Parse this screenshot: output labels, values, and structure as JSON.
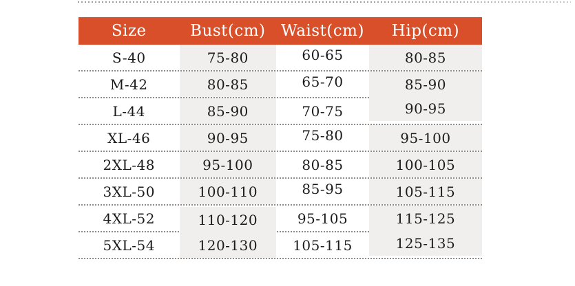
{
  "page": {
    "background_color": "#ffffff"
  },
  "table": {
    "title": "size-chart",
    "header": {
      "bg_color": "#d84f2a",
      "text_color": "#ffffff"
    },
    "columns": [
      {
        "label": "Size"
      },
      {
        "label": "Bust(cm)"
      },
      {
        "label": "Waist(cm)"
      },
      {
        "label": "Hip(cm)"
      }
    ],
    "rows": [
      {
        "size": "S-40",
        "bust": "75-80",
        "waist": "60-65",
        "hip": "80-85"
      },
      {
        "size": "M-42",
        "bust": "80-85",
        "waist": "65-70",
        "hip": "85-90"
      },
      {
        "size": "L-44",
        "bust": "85-90",
        "waist": "70-75",
        "hip": "90-95"
      },
      {
        "size": "XL-46",
        "bust": "90-95",
        "waist": "75-80",
        "hip": "95-100"
      },
      {
        "size": "2XL-48",
        "bust": "95-100",
        "waist": "80-85",
        "hip": "100-105"
      },
      {
        "size": "3XL-50",
        "bust": "100-110",
        "waist": "85-95",
        "hip": "105-115"
      },
      {
        "size": "4XL-52",
        "bust": "110-120",
        "waist": "95-105",
        "hip": "115-125"
      },
      {
        "size": "5XL-54",
        "bust": "120-130",
        "waist": "105-115",
        "hip": "125-135"
      }
    ],
    "stripe_color": "#f1efed",
    "divider_color": "#8c8c8c"
  },
  "chart_data": {
    "type": "table",
    "title": "Garment size chart",
    "categories": [
      "Size",
      "Bust(cm)",
      "Waist(cm)",
      "Hip(cm)"
    ],
    "values": [
      [
        "S-40",
        "75-80",
        "60-65",
        "80-85"
      ],
      [
        "M-42",
        "80-85",
        "65-70",
        "85-90"
      ],
      [
        "L-44",
        "85-90",
        "70-75",
        "90-95"
      ],
      [
        "XL-46",
        "90-95",
        "75-80",
        "95-100"
      ],
      [
        "2XL-48",
        "95-100",
        "80-85",
        "100-105"
      ],
      [
        "3XL-50",
        "100-110",
        "85-95",
        "105-115"
      ],
      [
        "4XL-52",
        "110-120",
        "95-105",
        "115-125"
      ],
      [
        "5XL-54",
        "120-130",
        "105-115",
        "125-135"
      ]
    ]
  }
}
